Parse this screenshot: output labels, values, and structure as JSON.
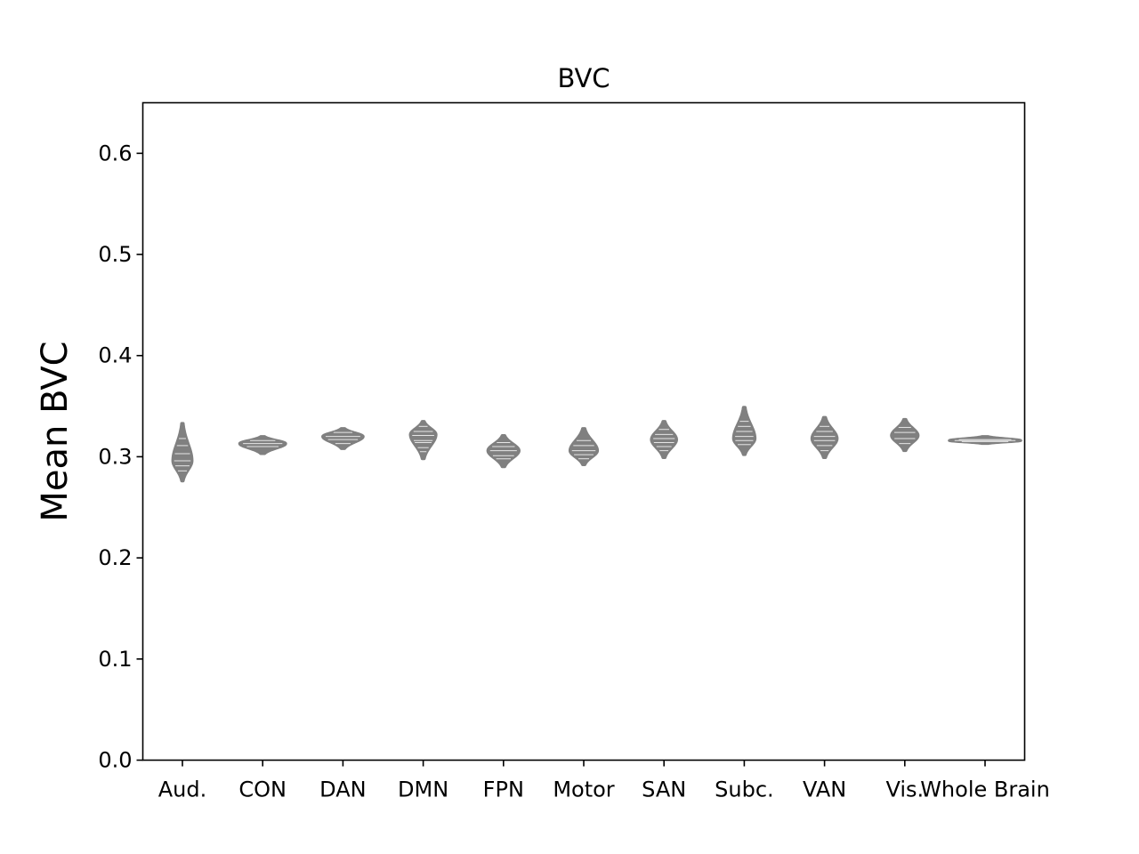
{
  "chart_data": {
    "type": "violin",
    "title": "BVC",
    "xlabel": "",
    "ylabel": "Mean BVC",
    "ylim": [
      0,
      0.65
    ],
    "yticks": [
      0.0,
      0.1,
      0.2,
      0.3,
      0.4,
      0.5,
      0.6
    ],
    "ytick_labels": [
      "0.0",
      "0.1",
      "0.2",
      "0.3",
      "0.4",
      "0.5",
      "0.6"
    ],
    "grid": false,
    "color": "#808080",
    "categories": [
      "Aud.",
      "CON",
      "DAN",
      "DMN",
      "FPN",
      "Motor",
      "SAN",
      "Subc.",
      "VAN",
      "Vis.",
      "Whole Brain"
    ],
    "violins": [
      {
        "category": "Aud.",
        "min": 0.276,
        "max": 0.333,
        "peak": 0.296,
        "width": 0.42,
        "lines": [
          0.318,
          0.311,
          0.303,
          0.296,
          0.291,
          0.286
        ]
      },
      {
        "category": "CON",
        "min": 0.303,
        "max": 0.32,
        "peak": 0.313,
        "width": 1.0,
        "lines": [
          0.316,
          0.313,
          0.31
        ]
      },
      {
        "category": "DAN",
        "min": 0.308,
        "max": 0.328,
        "peak": 0.32,
        "width": 0.88,
        "lines": [
          0.324,
          0.32,
          0.317,
          0.313
        ]
      },
      {
        "category": "DMN",
        "min": 0.298,
        "max": 0.335,
        "peak": 0.322,
        "width": 0.56,
        "lines": [
          0.33,
          0.325,
          0.321,
          0.316,
          0.314,
          0.309,
          0.305
        ]
      },
      {
        "category": "FPN",
        "min": 0.29,
        "max": 0.321,
        "peak": 0.306,
        "width": 0.68,
        "lines": [
          0.314,
          0.31,
          0.306,
          0.301,
          0.298
        ]
      },
      {
        "category": "Motor",
        "min": 0.292,
        "max": 0.328,
        "peak": 0.306,
        "width": 0.6,
        "lines": [
          0.316,
          0.311,
          0.306,
          0.302,
          0.298
        ]
      },
      {
        "category": "SAN",
        "min": 0.299,
        "max": 0.335,
        "peak": 0.317,
        "width": 0.55,
        "lines": [
          0.327,
          0.322,
          0.318,
          0.314,
          0.31,
          0.306
        ]
      },
      {
        "category": "Subc.",
        "min": 0.302,
        "max": 0.349,
        "peak": 0.318,
        "width": 0.47,
        "lines": [
          0.335,
          0.33,
          0.325,
          0.32,
          0.316,
          0.312
        ]
      },
      {
        "category": "VAN",
        "min": 0.299,
        "max": 0.339,
        "peak": 0.318,
        "width": 0.55,
        "lines": [
          0.33,
          0.325,
          0.32,
          0.316,
          0.311,
          0.306
        ]
      },
      {
        "category": "Vis.",
        "min": 0.306,
        "max": 0.337,
        "peak": 0.321,
        "width": 0.58,
        "lines": [
          0.329,
          0.324,
          0.318,
          0.313
        ]
      },
      {
        "category": "Whole Brain",
        "min": 0.313,
        "max": 0.32,
        "peak": 0.316,
        "width": 1.55,
        "lines": [
          0.317,
          0.316,
          0.315
        ]
      }
    ]
  }
}
